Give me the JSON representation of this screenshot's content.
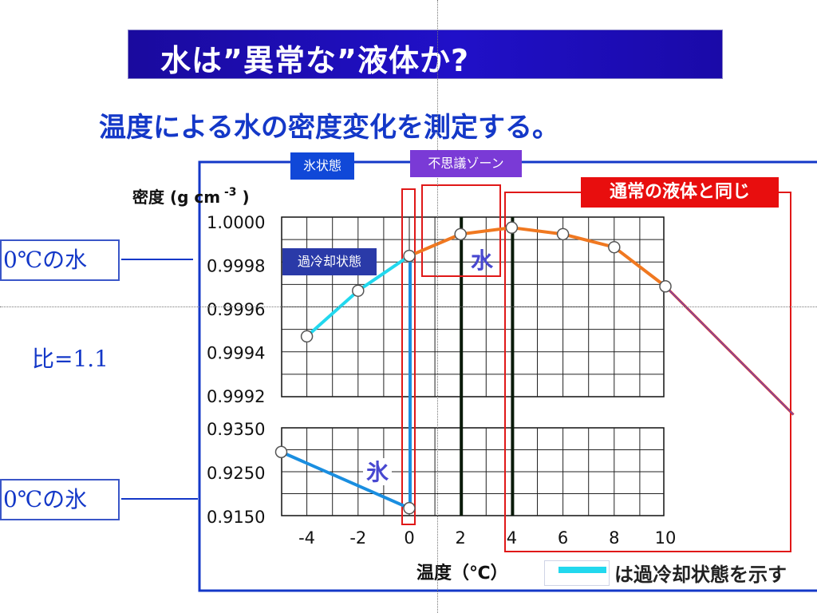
{
  "slide": {
    "title": "水は”異常な”液体か?",
    "subtitle": "温度による水の密度変化を測定する。"
  },
  "labels": {
    "water_0c": "0℃の水",
    "ice_0c": "0℃の氷",
    "ratio": "比=1.1",
    "ice_state": "氷状態",
    "mystery_zone": "不思議ゾーン",
    "supercooled": "過冷却状態",
    "normal_liquid": "通常の液体と同じ",
    "water_in_chart": "水",
    "ice_in_chart": "氷",
    "legend_note": "は過冷却状態を示す"
  },
  "colors": {
    "supercooled": "#22d8ee",
    "water": "#f07820",
    "ice": "#1a8ee0",
    "extrapolated": "#d22a2a",
    "extrapolated_inner": "#5a5ad8",
    "zone_box": "#e01818",
    "axis_frame": "#1438c8"
  },
  "chart_data": {
    "type": "line",
    "xlabel": "温度（℃）",
    "ylabel": "密度 (g cm",
    "ylabel_exp": "-3",
    "ylabel_close": ")",
    "x_ticks": [
      "-4",
      "-2",
      "0",
      "2",
      "4",
      "6",
      "8",
      "10"
    ],
    "x_tick_values": [
      -4,
      -2,
      0,
      2,
      4,
      6,
      8,
      10
    ],
    "xlim": [
      -5,
      10
    ],
    "upper_panel": {
      "ylim": [
        0.9992,
        1.0
      ],
      "y_ticks": [
        "1.0000",
        "0.9998",
        "0.9996",
        "0.9994",
        "0.9992"
      ],
      "y_tick_values": [
        1.0,
        0.9998,
        0.9996,
        0.9994,
        0.9992
      ]
    },
    "lower_panel": {
      "ylim": [
        0.915,
        0.935
      ],
      "y_ticks": [
        "0.9350",
        "0.9250",
        "0.9150"
      ],
      "y_tick_values": [
        0.935,
        0.925,
        0.915
      ]
    },
    "series": [
      {
        "key": "supercooled_water",
        "panel": "upper",
        "x": [
          -4,
          -2,
          0
        ],
        "y": [
          0.99947,
          0.99968,
          0.99984
        ]
      },
      {
        "key": "water",
        "panel": "upper",
        "x": [
          0,
          2,
          4,
          6,
          8,
          10
        ],
        "y": [
          0.99984,
          0.99994,
          0.99997,
          0.99994,
          0.99988,
          0.9997
        ]
      },
      {
        "key": "water_extrapolated",
        "panel": "upper",
        "x": [
          10,
          15
        ],
        "y": [
          0.9997,
          0.99911
        ]
      },
      {
        "key": "ice",
        "panel": "lower",
        "x": [
          -5,
          0
        ],
        "y": [
          0.9295,
          0.9167
        ]
      }
    ]
  }
}
